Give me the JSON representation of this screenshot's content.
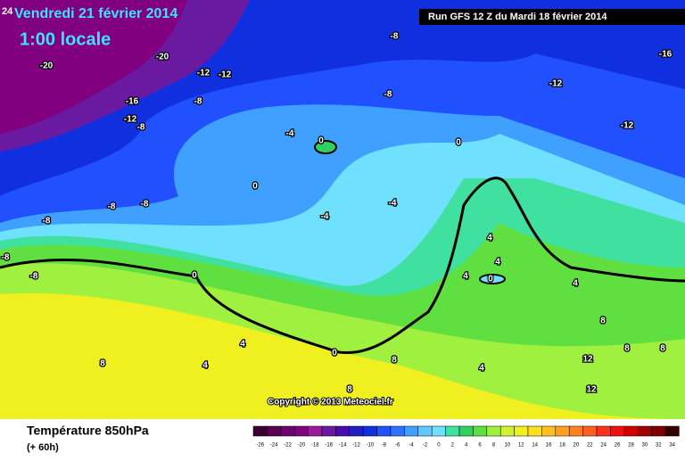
{
  "header": {
    "hour": "24",
    "date": "Vendredi 21 février 2014",
    "local_time": "1:00 locale",
    "run": "Run GFS 12 Z du Mardi 18 février 2014"
  },
  "map": {
    "contour_labels": [
      "-20",
      "-20",
      "-12",
      "-12",
      "-8",
      "-16",
      "-12",
      "-8",
      "-8",
      "-16",
      "-12",
      "-8",
      "-4",
      "0",
      "0",
      "-12",
      "0",
      "-8",
      "-8",
      "-4",
      "-4",
      "-8",
      "-8",
      "-8",
      "0",
      "4",
      "4",
      "4",
      "0",
      "4",
      "8",
      "4",
      "0",
      "8",
      "8",
      "8",
      "4",
      "8",
      "12",
      "4",
      "12",
      "8"
    ],
    "copyright": "Copyright © 2013 Meteociel.fr"
  },
  "footer": {
    "title": "Température 850hPa",
    "lead": "(+ 60h)"
  },
  "scale": {
    "values": [
      -26,
      -24,
      -22,
      -20,
      -18,
      -16,
      -14,
      -12,
      -10,
      -8,
      -6,
      -4,
      -2,
      0,
      2,
      4,
      6,
      8,
      10,
      12,
      14,
      16,
      18,
      20,
      22,
      24,
      26,
      28,
      30,
      32,
      34
    ],
    "colors": [
      "#3a0030",
      "#5a0050",
      "#700070",
      "#800080",
      "#9a1a9a",
      "#6a1aa0",
      "#4a0ab0",
      "#2020c0",
      "#1030e0",
      "#2050ff",
      "#3070ff",
      "#40a0ff",
      "#60c8ff",
      "#70e0ff",
      "#40e0a0",
      "#30d060",
      "#60e040",
      "#a0f040",
      "#d0f030",
      "#f0f020",
      "#ffe020",
      "#ffc020",
      "#ffa020",
      "#ff8020",
      "#ff6020",
      "#ff3020",
      "#f01010",
      "#d00000",
      "#a00000",
      "#800000",
      "#300000"
    ]
  }
}
